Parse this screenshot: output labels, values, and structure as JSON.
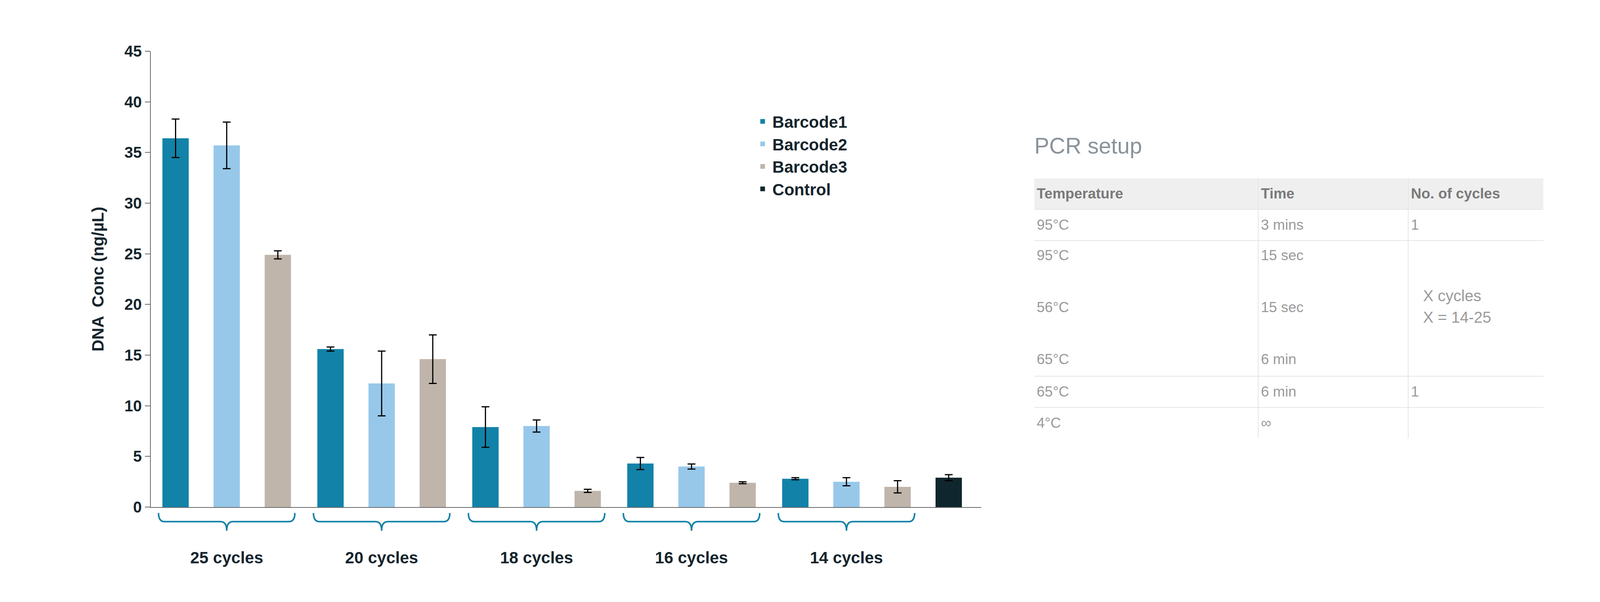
{
  "chart_data": {
    "type": "bar",
    "categories": [
      "25 cycles",
      "20 cycles",
      "18 cycles",
      "16 cycles",
      "14 cycles",
      null
    ],
    "series": [
      {
        "name": "Barcode1",
        "color": "#1282a8",
        "values": [
          36.4,
          15.6,
          7.9,
          4.3,
          2.8,
          null
        ],
        "errors": [
          1.9,
          0.2,
          2.0,
          0.6,
          0.1,
          null
        ]
      },
      {
        "name": "Barcode2",
        "color": "#97c8ea",
        "values": [
          35.7,
          12.2,
          8.0,
          4.0,
          2.5,
          null
        ],
        "errors": [
          2.3,
          3.2,
          0.6,
          0.25,
          0.4,
          null
        ]
      },
      {
        "name": "Barcode3",
        "color": "#c0b5ab",
        "values": [
          24.9,
          14.6,
          1.6,
          2.4,
          2.0,
          null
        ],
        "errors": [
          0.4,
          2.4,
          0.15,
          0.1,
          0.6,
          null
        ]
      },
      {
        "name": "Control",
        "color": "#10262e",
        "values": [
          null,
          null,
          null,
          null,
          null,
          2.9
        ],
        "errors": [
          null,
          null,
          null,
          null,
          null,
          0.3
        ]
      }
    ],
    "y_label": "DNA  Conc (ng/µL)",
    "ylim": [
      0,
      45
    ],
    "yticks": [
      0,
      5,
      10,
      15,
      20,
      25,
      30,
      35,
      40,
      45
    ],
    "grid": false,
    "legend": "upper right"
  },
  "table": {
    "title": "PCR setup",
    "columns": [
      "Temperature",
      "Time",
      "No. of cycles"
    ],
    "rows": [
      {
        "temperature": [
          "95°C"
        ],
        "time": [
          "3 mins"
        ],
        "cycles": [
          "1"
        ]
      },
      {
        "temperature": [
          "95°C",
          "56°C",
          "65°C"
        ],
        "time": [
          "15 sec",
          "15 sec",
          "6 min"
        ],
        "cycles": [
          "X cycles",
          "X = 14-25"
        ]
      },
      {
        "temperature": [
          "65°C"
        ],
        "time": [
          "6 min"
        ],
        "cycles": [
          "1"
        ]
      },
      {
        "temperature": [
          "4°C"
        ],
        "time": [
          "∞"
        ],
        "cycles": []
      }
    ]
  }
}
